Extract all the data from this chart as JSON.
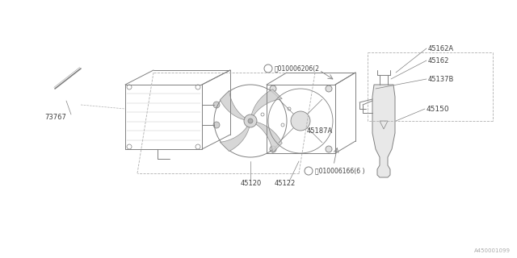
{
  "bg_color": "#ffffff",
  "line_color": "#808080",
  "dashed_color": "#b0b0b0",
  "fig_width": 6.4,
  "fig_height": 3.2,
  "dpi": 100,
  "watermark": "A450001099",
  "lw": 0.7,
  "parts": {
    "radiator_label": "73767",
    "fan_label": "45120",
    "shroud_label": "45122",
    "fan_assy_label": "45187A",
    "bolt1_label": "B 010006206(2",
    "bolt2_label": "B 010006166(6 )",
    "reservoir_label": "45150",
    "cap_label": "45162A",
    "cap2_label": "45162",
    "bracket_label": "45137B"
  }
}
